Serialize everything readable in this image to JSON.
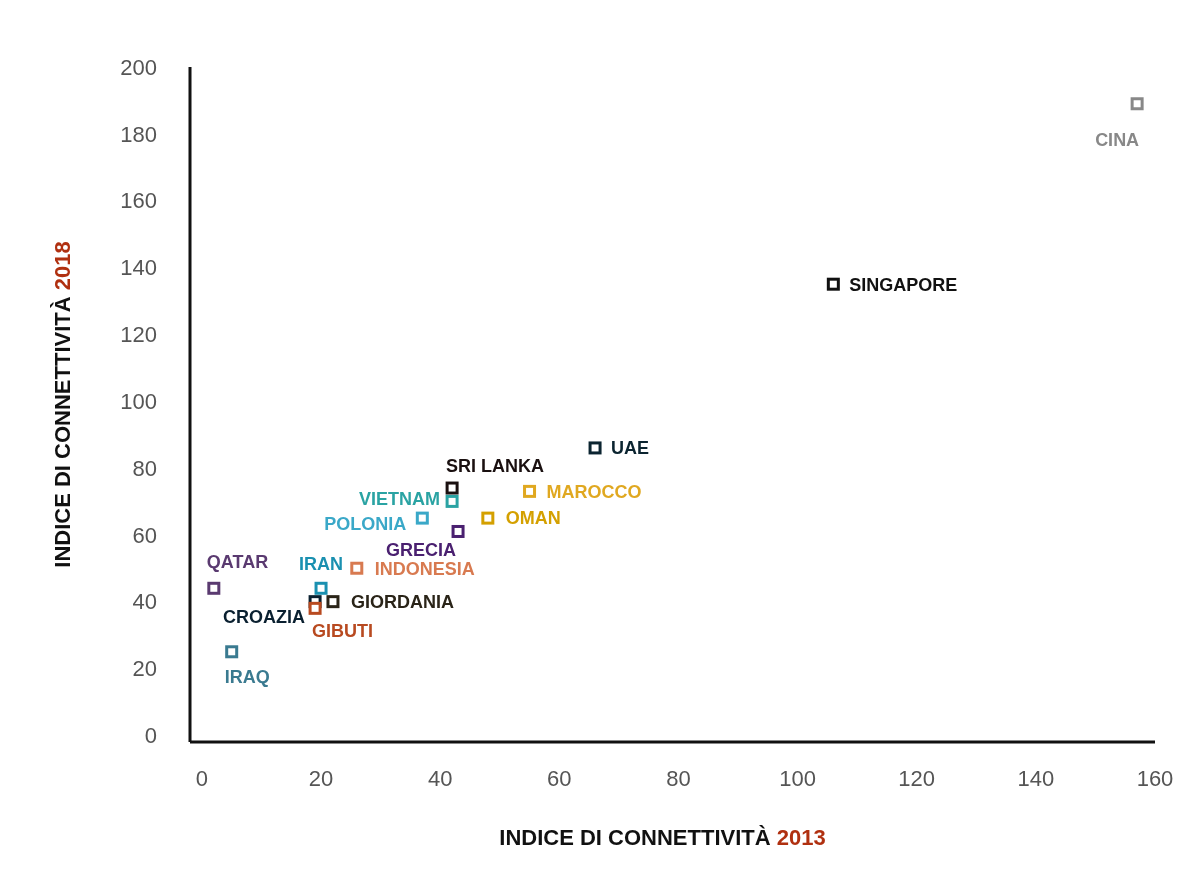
{
  "chart_data": {
    "type": "scatter",
    "xlabel": "INDICE DI CONNETTIVITÀ 2013",
    "ylabel": "INDICE DI CONNETTIVITÀ 2018",
    "xlim": [
      -2,
      160
    ],
    "ylim": [
      -2,
      200
    ],
    "xticks": [
      0,
      20,
      40,
      60,
      80,
      100,
      120,
      140,
      160
    ],
    "yticks": [
      0,
      20,
      40,
      60,
      80,
      100,
      120,
      140,
      160,
      180,
      200
    ],
    "grid": false,
    "marker": "square",
    "series": [
      {
        "name": "CINA",
        "color": "#888888",
        "x": [
          157
        ],
        "values": [
          189
        ]
      },
      {
        "name": "SINGAPORE",
        "color": "#111111",
        "x": [
          106
        ],
        "values": [
          135
        ]
      },
      {
        "name": "UAE",
        "color": "#0b2430",
        "x": [
          66
        ],
        "values": [
          86
        ]
      },
      {
        "name": "SRI LANKA",
        "color": "#1a1010",
        "x": [
          42
        ],
        "values": [
          74
        ]
      },
      {
        "name": "VIETNAM",
        "color": "#2aa3a3",
        "x": [
          42
        ],
        "values": [
          70
        ]
      },
      {
        "name": "MAROCCO",
        "color": "#e0a820",
        "x": [
          55
        ],
        "values": [
          73
        ]
      },
      {
        "name": "OMAN",
        "color": "#d4a000",
        "x": [
          48
        ],
        "values": [
          65
        ]
      },
      {
        "name": "POLONIA",
        "color": "#3aa8c8",
        "x": [
          37
        ],
        "values": [
          65
        ]
      },
      {
        "name": "GRECIA",
        "color": "#4a2070",
        "x": [
          43
        ],
        "values": [
          61
        ]
      },
      {
        "name": "INDONESIA",
        "color": "#d87a50",
        "x": [
          26
        ],
        "values": [
          50
        ]
      },
      {
        "name": "QATAR",
        "color": "#5a3a70",
        "x": [
          2
        ],
        "values": [
          44
        ]
      },
      {
        "name": "IRAN",
        "color": "#1a90b0",
        "x": [
          20
        ],
        "values": [
          44
        ]
      },
      {
        "name": "CROAZIA",
        "color": "#0a2030",
        "x": [
          19
        ],
        "values": [
          40
        ]
      },
      {
        "name": "GIORDANIA",
        "color": "#2a2418",
        "x": [
          22
        ],
        "values": [
          40
        ]
      },
      {
        "name": "GIBUTI",
        "color": "#b84a20",
        "x": [
          19
        ],
        "values": [
          38
        ]
      },
      {
        "name": "IRAQ",
        "color": "#3a7a90",
        "x": [
          5
        ],
        "values": [
          25
        ]
      }
    ]
  }
}
